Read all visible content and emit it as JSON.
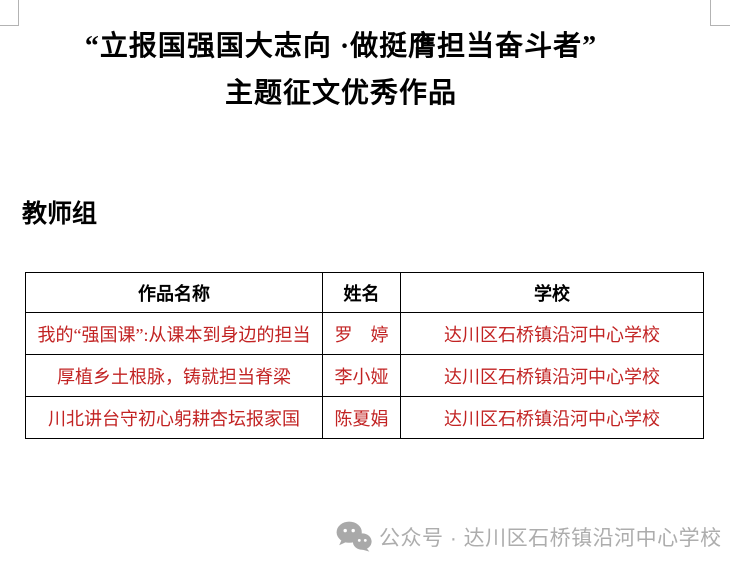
{
  "page": {
    "title_line1": "“立报国强国大志向 ·做挺膺担当奋斗者”",
    "title_line2": "主题征文优秀作品",
    "section_heading": "教师组"
  },
  "table": {
    "headers": [
      "作品名称",
      "姓名",
      "学校"
    ],
    "rows": [
      {
        "work": "我的“强国课”:从课本到身边的担当",
        "name": "罗　婷",
        "school": "达川区石桥镇沿河中心学校"
      },
      {
        "work": "厚植乡土根脉，铸就担当脊梁",
        "name": "李小娅",
        "school": "达川区石桥镇沿河中心学校"
      },
      {
        "work": "川北讲台守初心躬耕杏坛报家国",
        "name": "陈夏娟",
        "school": "达川区石桥镇沿河中心学校"
      }
    ]
  },
  "watermark": {
    "icon": "wechat-icon",
    "text": "公众号 · 达川区石桥镇沿河中心学校"
  },
  "colors": {
    "table_text_red": "#c22323",
    "watermark_gray": "#adadad",
    "crop_mark_gray": "#b3b3b3"
  }
}
